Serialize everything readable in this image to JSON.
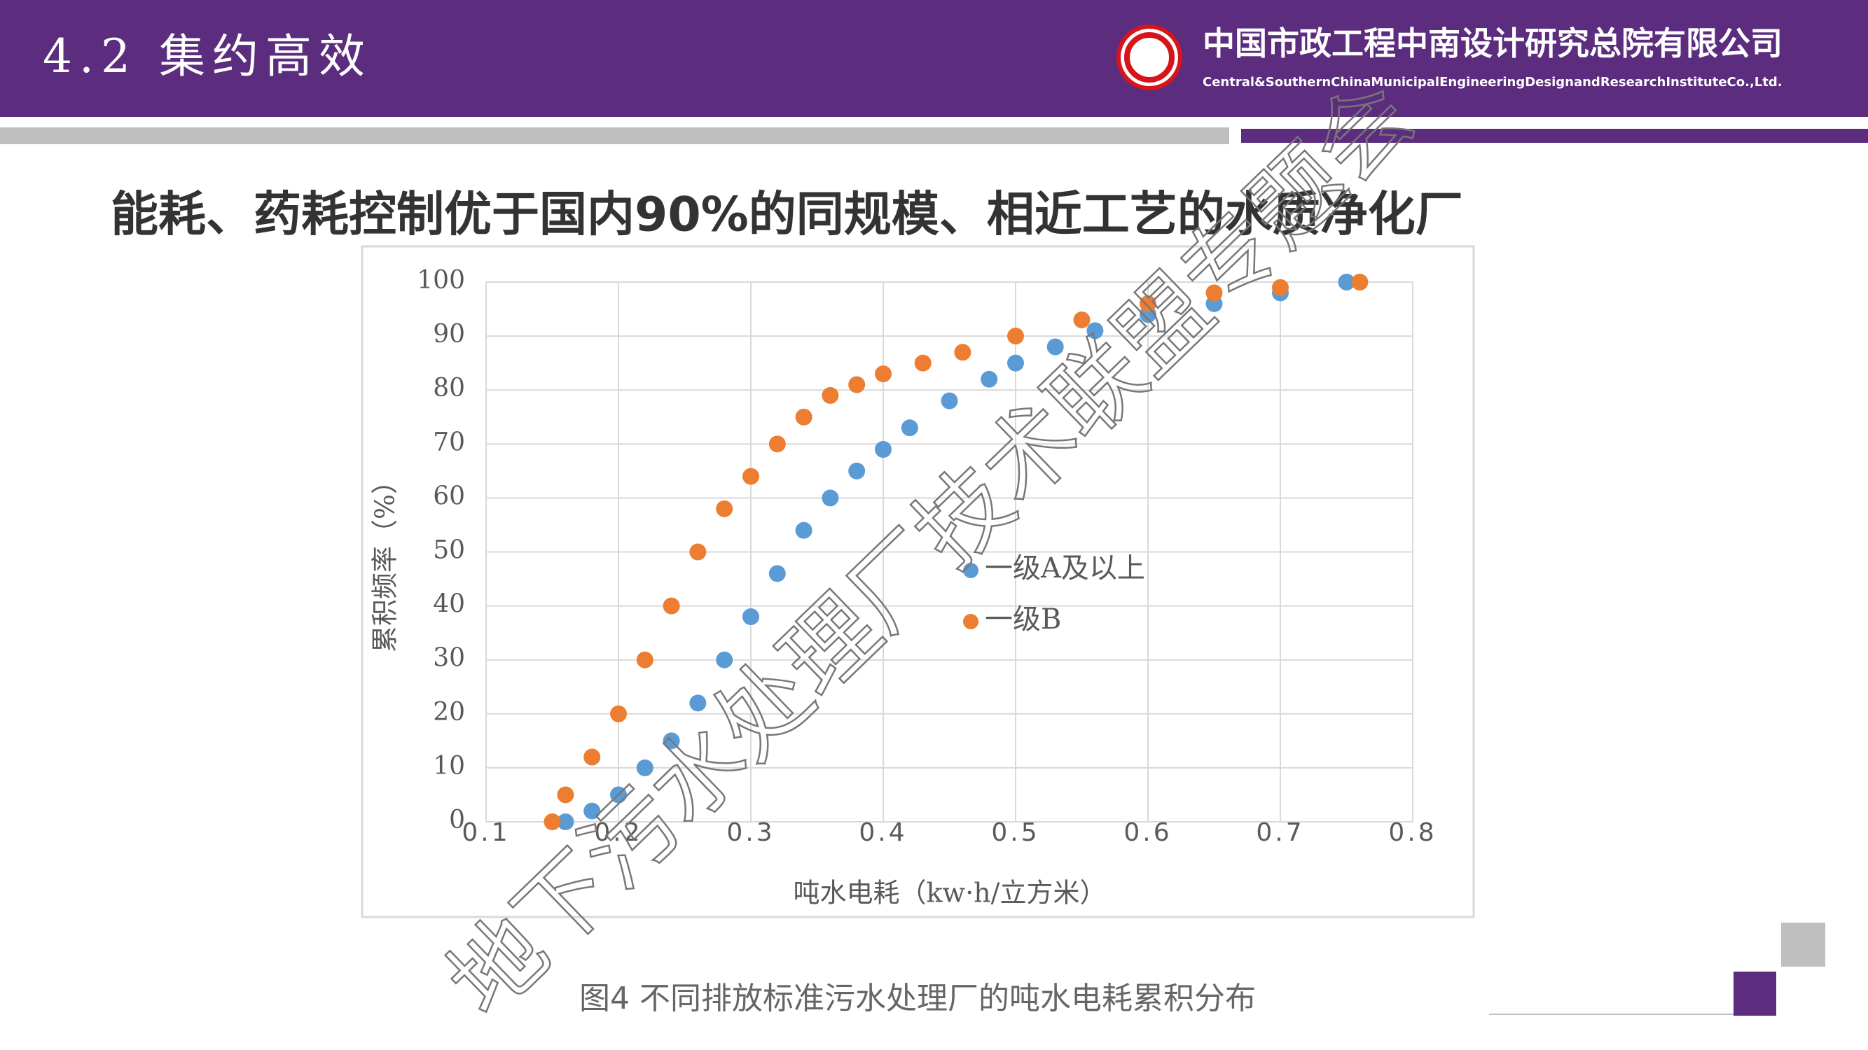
{
  "slide": {
    "section_title": "4.2 集约高效",
    "company_name": "中国市政工程中南设计研究总院有限公司",
    "company_name_en": "Central&SouthernChinaMunicipalEngineeringDesignandResearchInstituteCo.,Ltd.",
    "headline": "能耗、药耗控制优于国内90%的同规模、相近工艺的水质净化厂",
    "caption": "图4  不同排放标准污水处理厂的吨水电耗累积分布",
    "watermark": "地下污水处理厂技术联盟专题会"
  },
  "chart_data": {
    "type": "scatter",
    "x_label": "吨水电耗（kw·h/立方米）",
    "y_label": "累积频率（%）",
    "xlim": [
      0.1,
      0.8
    ],
    "xticks": [
      0.1,
      0.2,
      0.3,
      0.4,
      0.5,
      0.6,
      0.7,
      0.8
    ],
    "ylim": [
      0,
      100
    ],
    "yticks": [
      0,
      10,
      20,
      30,
      40,
      50,
      60,
      70,
      80,
      90,
      100
    ],
    "grid": true,
    "series": [
      {
        "name": "一级A及以上",
        "color": "#5b9bd5",
        "x": [
          0.16,
          0.18,
          0.2,
          0.22,
          0.24,
          0.26,
          0.28,
          0.3,
          0.32,
          0.34,
          0.36,
          0.38,
          0.4,
          0.42,
          0.45,
          0.48,
          0.5,
          0.53,
          0.56,
          0.6,
          0.65,
          0.7,
          0.75
        ],
        "values": [
          0,
          2,
          5,
          10,
          15,
          22,
          30,
          38,
          46,
          54,
          60,
          65,
          69,
          73,
          78,
          82,
          85,
          88,
          91,
          94,
          96,
          98,
          100
        ]
      },
      {
        "name": "一级B",
        "color": "#ed7d31",
        "x": [
          0.15,
          0.16,
          0.18,
          0.2,
          0.22,
          0.24,
          0.26,
          0.28,
          0.3,
          0.32,
          0.34,
          0.36,
          0.38,
          0.4,
          0.43,
          0.46,
          0.5,
          0.55,
          0.6,
          0.65,
          0.7,
          0.76
        ],
        "values": [
          0,
          5,
          12,
          20,
          30,
          40,
          50,
          58,
          64,
          70,
          75,
          79,
          81,
          83,
          85,
          87,
          90,
          93,
          96,
          98,
          99,
          100
        ]
      }
    ]
  }
}
